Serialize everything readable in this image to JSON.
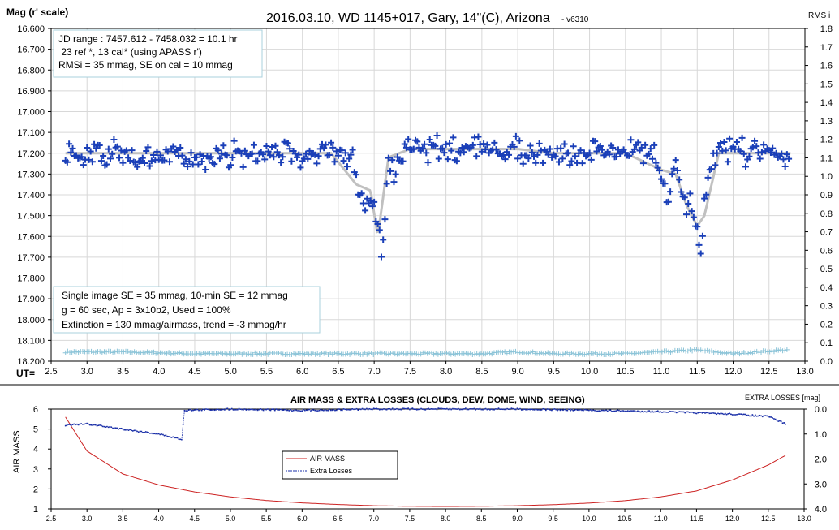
{
  "top": {
    "title": "2016.03.10,  WD 1145+017,  Gary,  14\"(C), Arizona",
    "version": "- v6310",
    "ylabel": "Mag (r' scale)",
    "y2label": "RMS i",
    "xlabel": "UT=",
    "info_top": [
      "JD range  : 7457.612 - 7458.032 = 10.1 hr",
      " 23 ref *, 13 cal* (using APASS r')",
      "RMSi = 35 mmag, SE on cal = 10 mmag"
    ],
    "info_bottom": [
      "Single image SE = 35 mmag, 10-min SE = 12 mmag",
      "g = 60 sec, Ap = 3x10b2, Used = 100%",
      "Extinction = 130 mmag/airmass, trend = -3 mmag/hr"
    ],
    "yticks": [
      "16.600",
      "16.700",
      "16.800",
      "16.900",
      "17.000",
      "17.100",
      "17.200",
      "17.300",
      "17.400",
      "17.500",
      "17.600",
      "17.700",
      "17.800",
      "17.900",
      "18.000",
      "18.100",
      "18.200"
    ],
    "y2ticks": [
      "1.8",
      "1.7",
      "1.6",
      "1.5",
      "1.4",
      "1.3",
      "1.2",
      "1.1",
      "1.0",
      "0.9",
      "0.8",
      "0.7",
      "0.6",
      "0.5",
      "0.4",
      "0.3",
      "0.2",
      "0.1",
      "0.0"
    ],
    "xticks": [
      "2.5",
      "3.0",
      "3.5",
      "4.0",
      "4.5",
      "5.0",
      "5.5",
      "6.0",
      "6.5",
      "7.0",
      "7.5",
      "8.0",
      "8.5",
      "9.0",
      "9.5",
      "10.0",
      "10.5",
      "11.0",
      "11.5",
      "12.0",
      "12.5",
      "13.0"
    ]
  },
  "bottom": {
    "title": "AIR MASS & EXTRA LOSSES (CLOUDS, DEW, DOME, WIND, SEEING)",
    "ylabel": "AIR MASS",
    "y2label": "EXTRA LOSSES [mag]",
    "legend": [
      "AIR MASS",
      "Extra Losses"
    ],
    "yticks": [
      "6",
      "5",
      "4",
      "3",
      "2",
      "1"
    ],
    "y2ticks": [
      "0.0",
      "1.0",
      "2.0",
      "3.0",
      "4.0"
    ],
    "xticks": [
      "2.5",
      "3.0",
      "3.5",
      "4.0",
      "4.5",
      "5.0",
      "5.5",
      "6.0",
      "6.5",
      "7.0",
      "7.5",
      "8.0",
      "8.5",
      "9.0",
      "9.5",
      "10.0",
      "10.5",
      "11.0",
      "11.5",
      "12.0",
      "12.5",
      "13.0"
    ]
  },
  "colors": {
    "data": "#1a3fb8",
    "model": "#c0c0c0",
    "rms": "#8cc4d8",
    "airmass": "#cc2222",
    "losses": "#1a2fa8",
    "grid": "#d8d8d8"
  },
  "chart_data": [
    {
      "type": "scatter",
      "title": "2016.03.10,  WD 1145+017,  Gary,  14\"(C), Arizona",
      "xlabel": "UT=",
      "ylabel": "Mag (r' scale)",
      "y2label": "RMS i",
      "xlim": [
        2.5,
        13.0
      ],
      "ylim": [
        18.2,
        16.6
      ],
      "y2lim": [
        0.0,
        1.8
      ],
      "grid": true,
      "series": [
        {
          "name": "",
          "x": [
            2.7,
            3.5,
            4.5,
            5.5,
            6.4,
            6.7,
            6.85,
            6.95,
            7.05,
            7.1,
            7.2,
            7.5,
            8.0,
            8.5,
            9.0,
            9.5,
            10.0,
            10.5,
            10.9,
            11.0,
            11.1,
            11.2,
            11.3,
            11.45,
            11.55,
            11.65,
            11.8,
            12.0,
            12.5,
            12.8
          ],
          "y": [
            17.2,
            17.21,
            17.22,
            17.2,
            17.2,
            17.25,
            17.45,
            17.4,
            17.58,
            17.66,
            17.3,
            17.17,
            17.18,
            17.17,
            17.19,
            17.21,
            17.19,
            17.18,
            17.2,
            17.32,
            17.45,
            17.22,
            17.4,
            17.47,
            17.66,
            17.32,
            17.2,
            17.18,
            17.2,
            17.2
          ]
        },
        {
          "name": "",
          "x": [
            2.7,
            3.5,
            4.5,
            5.5,
            6.4,
            6.75,
            6.95,
            7.05,
            7.2,
            7.5,
            8.0,
            8.5,
            9.0,
            9.5,
            10.0,
            10.5,
            11.0,
            11.2,
            11.35,
            11.5,
            11.6,
            11.8,
            12.0,
            12.5,
            12.8
          ],
          "y": [
            17.2,
            17.2,
            17.2,
            17.2,
            17.2,
            17.35,
            17.38,
            17.6,
            17.22,
            17.18,
            17.18,
            17.18,
            17.18,
            17.2,
            17.2,
            17.2,
            17.28,
            17.3,
            17.45,
            17.55,
            17.5,
            17.2,
            17.2,
            17.2,
            17.2
          ]
        },
        {
          "name": "",
          "x": [
            2.7,
            3.5,
            4.5,
            5.5,
            6.5,
            7.5,
            8.5,
            9.0,
            9.5,
            10.5,
            11.5,
            12.0,
            12.7
          ],
          "y": [
            0.05,
            0.05,
            0.04,
            0.04,
            0.04,
            0.04,
            0.04,
            0.05,
            0.04,
            0.04,
            0.06,
            0.04,
            0.06
          ]
        }
      ]
    },
    {
      "type": "line",
      "title": "AIR MASS & EXTRA LOSSES (CLOUDS, DEW, DOME, WIND, SEEING)",
      "xlabel": "",
      "ylabel": "AIR MASS",
      "y2label": "EXTRA LOSSES [mag]",
      "xlim": [
        2.5,
        13.0
      ],
      "ylim": [
        1,
        6
      ],
      "y2lim": [
        4.0,
        0.0
      ],
      "legend": "center",
      "series": [
        {
          "name": "AIR MASS",
          "x": [
            2.7,
            3.0,
            3.5,
            4.0,
            4.5,
            5.0,
            5.5,
            6.0,
            6.5,
            7.0,
            7.5,
            8.0,
            8.5,
            9.0,
            9.5,
            10.0,
            10.5,
            11.0,
            11.5,
            12.0,
            12.5,
            12.75
          ],
          "y": [
            5.6,
            3.9,
            2.75,
            2.2,
            1.85,
            1.6,
            1.42,
            1.3,
            1.22,
            1.16,
            1.13,
            1.12,
            1.13,
            1.16,
            1.21,
            1.29,
            1.41,
            1.6,
            1.9,
            2.45,
            3.2,
            3.7
          ]
        },
        {
          "name": "Extra Losses",
          "x": [
            2.7,
            3.0,
            3.5,
            4.0,
            4.3,
            4.33,
            4.35,
            5.0,
            6.0,
            7.0,
            8.0,
            9.0,
            10.0,
            11.0,
            12.0,
            12.5,
            12.75
          ],
          "y2": [
            0.65,
            0.6,
            0.8,
            1.0,
            1.2,
            1.2,
            0.05,
            0.0,
            0.05,
            0.0,
            0.0,
            0.0,
            0.05,
            0.1,
            0.2,
            0.3,
            0.6
          ]
        }
      ]
    }
  ]
}
